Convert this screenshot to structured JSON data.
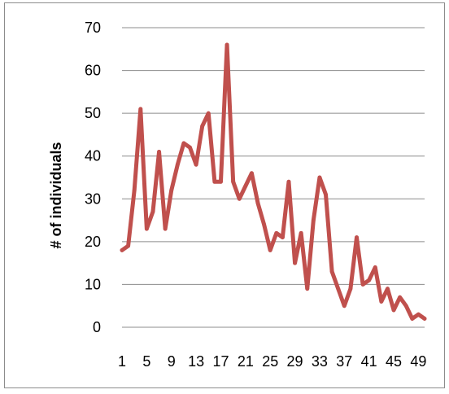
{
  "chart_data": {
    "type": "line",
    "title": "",
    "xlabel": "",
    "ylabel": "# of individuals",
    "ylim": [
      0,
      70
    ],
    "yticks": [
      0,
      10,
      20,
      30,
      40,
      50,
      60,
      70
    ],
    "xtick_labels": [
      "1",
      "5",
      "9",
      "13",
      "17",
      "21",
      "25",
      "29",
      "33",
      "37",
      "41",
      "45",
      "49"
    ],
    "grid": "horizontal",
    "legend": "none",
    "line_color": "#c0504d",
    "x": [
      1,
      2,
      3,
      4,
      5,
      6,
      7,
      8,
      9,
      10,
      11,
      12,
      13,
      14,
      15,
      16,
      17,
      18,
      19,
      20,
      21,
      22,
      23,
      24,
      25,
      26,
      27,
      28,
      29,
      30,
      31,
      32,
      33,
      34,
      35,
      36,
      37,
      38,
      39,
      40,
      41,
      42,
      43,
      44,
      45,
      46,
      47,
      48,
      49,
      50
    ],
    "series": [
      {
        "values": [
          18,
          19,
          32,
          51,
          23,
          27,
          41,
          23,
          32,
          38,
          43,
          42,
          38,
          47,
          50,
          34,
          34,
          66,
          34,
          30,
          33,
          36,
          29,
          24,
          18,
          22,
          21,
          34,
          15,
          22,
          9,
          25,
          35,
          31,
          13,
          9,
          5,
          9,
          21,
          10,
          11,
          14,
          6,
          9,
          4,
          7,
          5,
          2,
          3,
          2
        ]
      }
    ]
  }
}
